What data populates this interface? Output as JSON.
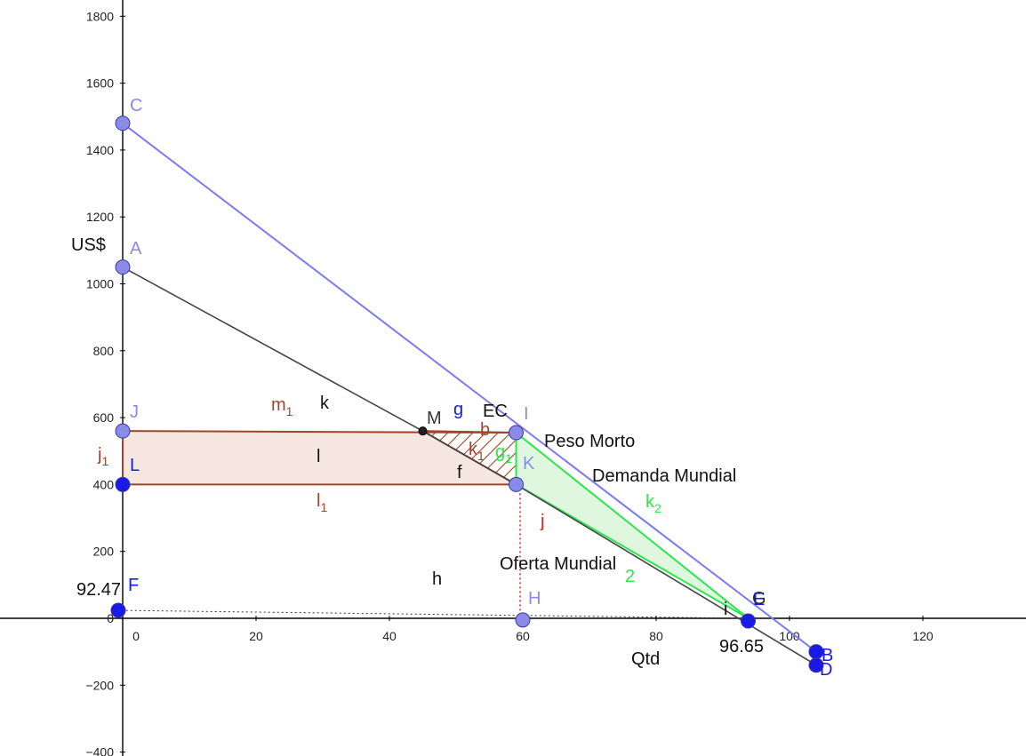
{
  "chart_data": {
    "type": "line",
    "xlabel": "Qtd",
    "ylabel": "US$",
    "xlim": [
      -1.5,
      135
    ],
    "ylim": [
      -400,
      1850
    ],
    "x_ticks": [
      0,
      20,
      40,
      60,
      80,
      100,
      120
    ],
    "y_ticks": [
      -400,
      -200,
      0,
      200,
      400,
      600,
      800,
      1000,
      1200,
      1400,
      1600,
      1800
    ],
    "grid": false,
    "colors": {
      "blue_line": "#7b7bf2",
      "black_line": "#444444",
      "brown": "#a0442a",
      "rect_fill": "#f5e6e0",
      "green": "#2ae84a",
      "green_fill": "#dff7df",
      "point_light": "#8a8ae8",
      "point_dark": "#1a1ae6",
      "red_dotted": "#e02020"
    },
    "points": [
      {
        "name": "C",
        "x": 0,
        "y": 1480,
        "style": "light"
      },
      {
        "name": "A",
        "x": 0,
        "y": 1050,
        "style": "light"
      },
      {
        "name": "J",
        "x": 0,
        "y": 560,
        "style": "light"
      },
      {
        "name": "L",
        "x": 0,
        "y": 400,
        "style": "dark"
      },
      {
        "name": "F",
        "x": 0,
        "y": 24,
        "style": "dark"
      },
      {
        "name": "M",
        "x": 45,
        "y": 560,
        "style": "black"
      },
      {
        "name": "I",
        "x": 59,
        "y": 555,
        "style": "light"
      },
      {
        "name": "K",
        "x": 59,
        "y": 400,
        "style": "light"
      },
      {
        "name": "H",
        "x": 60,
        "y": -5,
        "style": "light"
      },
      {
        "name": "G",
        "x": 93.8,
        "y": 0,
        "style": "black"
      },
      {
        "name": "E",
        "x": 93.8,
        "y": -8,
        "style": "dark"
      },
      {
        "name": "B",
        "x": 104,
        "y": -100,
        "style": "dark"
      },
      {
        "name": "D",
        "x": 104,
        "y": -140,
        "style": "dark"
      }
    ],
    "segments": [
      {
        "name": "g",
        "from": [
          0,
          1480
        ],
        "to": [
          104,
          -100
        ],
        "color": "blue"
      },
      {
        "name": "k",
        "from": [
          0,
          1050
        ],
        "to": [
          45,
          560
        ],
        "color": "black"
      },
      {
        "name": "f",
        "from": [
          45,
          560
        ],
        "to": [
          59,
          400
        ],
        "color": "black"
      },
      {
        "name": "j",
        "from": [
          59,
          400
        ],
        "to": [
          104,
          -140
        ],
        "color": "black"
      }
    ],
    "regions": [
      {
        "name": "l",
        "polygon": [
          [
            0,
            560
          ],
          [
            45,
            560
          ],
          [
            59,
            400
          ],
          [
            0,
            400
          ]
        ],
        "fill": "rect"
      },
      {
        "name": "k1",
        "polygon": [
          [
            45,
            560
          ],
          [
            59,
            555
          ],
          [
            59,
            400
          ]
        ],
        "fill": "hatch"
      },
      {
        "name": "k2",
        "polygon": [
          [
            59,
            555
          ],
          [
            59,
            400
          ],
          [
            93.8,
            0
          ]
        ],
        "fill": "green"
      }
    ],
    "annotations": {
      "curve_labels": [
        "Peso Morto",
        "Demanda Mundial",
        "Oferta Mundial",
        "EC"
      ],
      "object_labels": [
        "m",
        "k",
        "g",
        "l",
        "f",
        "h",
        "j",
        "i"
      ],
      "value_labels": [
        "92.47",
        "96.65"
      ]
    }
  },
  "labels": {
    "ec": "EC",
    "peso_morto": "Peso Morto",
    "demanda": "Demanda Mundial",
    "oferta": "Oferta Mundial",
    "us": "US$",
    "qtd": "Qtd",
    "val_left": "92.47",
    "val_right": "96.65",
    "pt_C": "C",
    "pt_A": "A",
    "pt_J": "J",
    "pt_L": "L",
    "pt_F": "F",
    "pt_M": "M",
    "pt_I": "I",
    "pt_K": "K",
    "pt_H": "H",
    "pt_G": "G",
    "pt_E": "E",
    "pt_B": "B",
    "pt_D": "D",
    "m1": "m",
    "m1_sub": "1",
    "k": "k",
    "g": "g",
    "l": "l",
    "l1": "l",
    "l1_sub": "1",
    "j1": "j",
    "j1_sub": "1",
    "f": "f",
    "h": "h",
    "j": "j",
    "i": "i",
    "k1": "k",
    "k1_sub": "1",
    "k2": "k",
    "k2_sub": "2",
    "g1": "g",
    "g1_sub": "1",
    "l2_sub": "2",
    "b_small": "b"
  }
}
